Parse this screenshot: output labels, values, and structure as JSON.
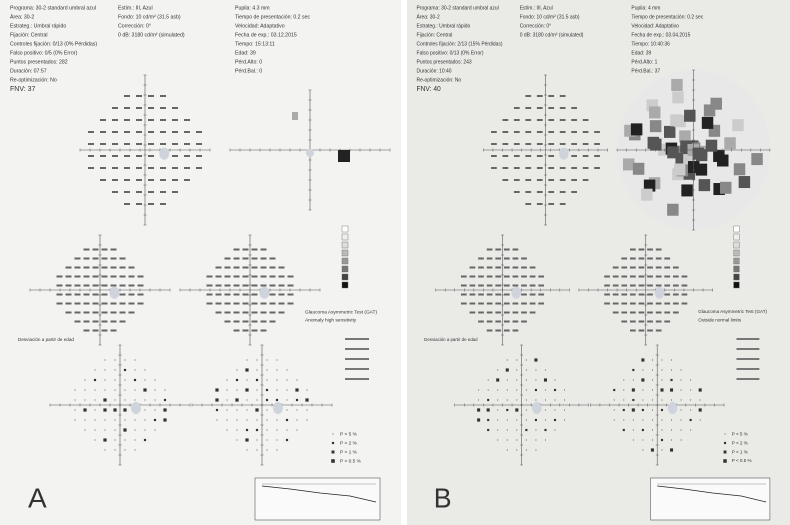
{
  "panels": [
    {
      "label": "A",
      "header": {
        "left": [
          "Programa: 30-2 standard umbral azul",
          "Área: 30-2",
          "Estrateg.: Umbral rápido",
          "Fijación: Central",
          "Controles fijación: 0/13 (0% Pérdidas)",
          "Falso positivo: 0/5 (0% Error)",
          "Puntos presentados: 282",
          "Duración: 07:57",
          "Re-optimización: No",
          "FNV: 37"
        ],
        "middle": [
          "Estím.: III, Azul",
          "Fondo: 10 cd/m² (31.5 asb)",
          "Corrección: 0°",
          "0 dB: 3180 cd/m² (simulated)"
        ],
        "right": [
          "Pupila: 4.3 mm",
          "Tiempo de presentación: 0.2 sec",
          "Velocidad: Adaptativo",
          "Fecha de exp.: 03.12.2015",
          "Tiempo: 15:13:11",
          "Edad: 39",
          "Pérd.Alto: 0",
          "Pérd.Bal.: 0"
        ]
      },
      "test_title": "Glaucoma Asymmetric Test (GAT)",
      "test_result": "Anomaly high sensitivity",
      "deviation_label": "Desviación a partir de edad",
      "p_legend": [
        "P < 5 %",
        "P < 2 %",
        "P < 1 %",
        "P < 0.5 %"
      ]
    },
    {
      "label": "B",
      "header": {
        "left": [
          "Programa: 30-2 standard umbral azul",
          "Área: 30-2",
          "Estrateg.: Umbral rápido",
          "Fijación: Central",
          "Controles fijación: 2/13 (15% Pérdidas)",
          "Falso positivo: 0/13 (0% Error)",
          "Puntos presentados: 243",
          "Duración: 10:40",
          "Re-optimización: No",
          "FNV: 40"
        ],
        "middle": [
          "Estím.: III, Azul",
          "Fondo: 10 cd/m² (31.5 asb)",
          "Corrección: 0°",
          "0 dB: 3180 cd/m² (simulated)"
        ],
        "right": [
          "Pupila: 4 mm",
          "Tiempo de presentación: 0.2 sec",
          "Velocidad: Adaptativo",
          "Fecha de exp.: 03.04.2015",
          "Tiempo: 10:40:36",
          "Edad: 39",
          "Pérd.Alto: 1",
          "Pérd.Bal.: 37"
        ]
      },
      "test_title": "Glaucoma Asymmetric Test (GAT)",
      "test_result": "Outside normal limits",
      "deviation_label": "Desviación a partir de edad",
      "p_legend": [
        "P < 5 %",
        "P < 2 %",
        "P < 1 %",
        "P < 0.5 %"
      ]
    }
  ]
}
